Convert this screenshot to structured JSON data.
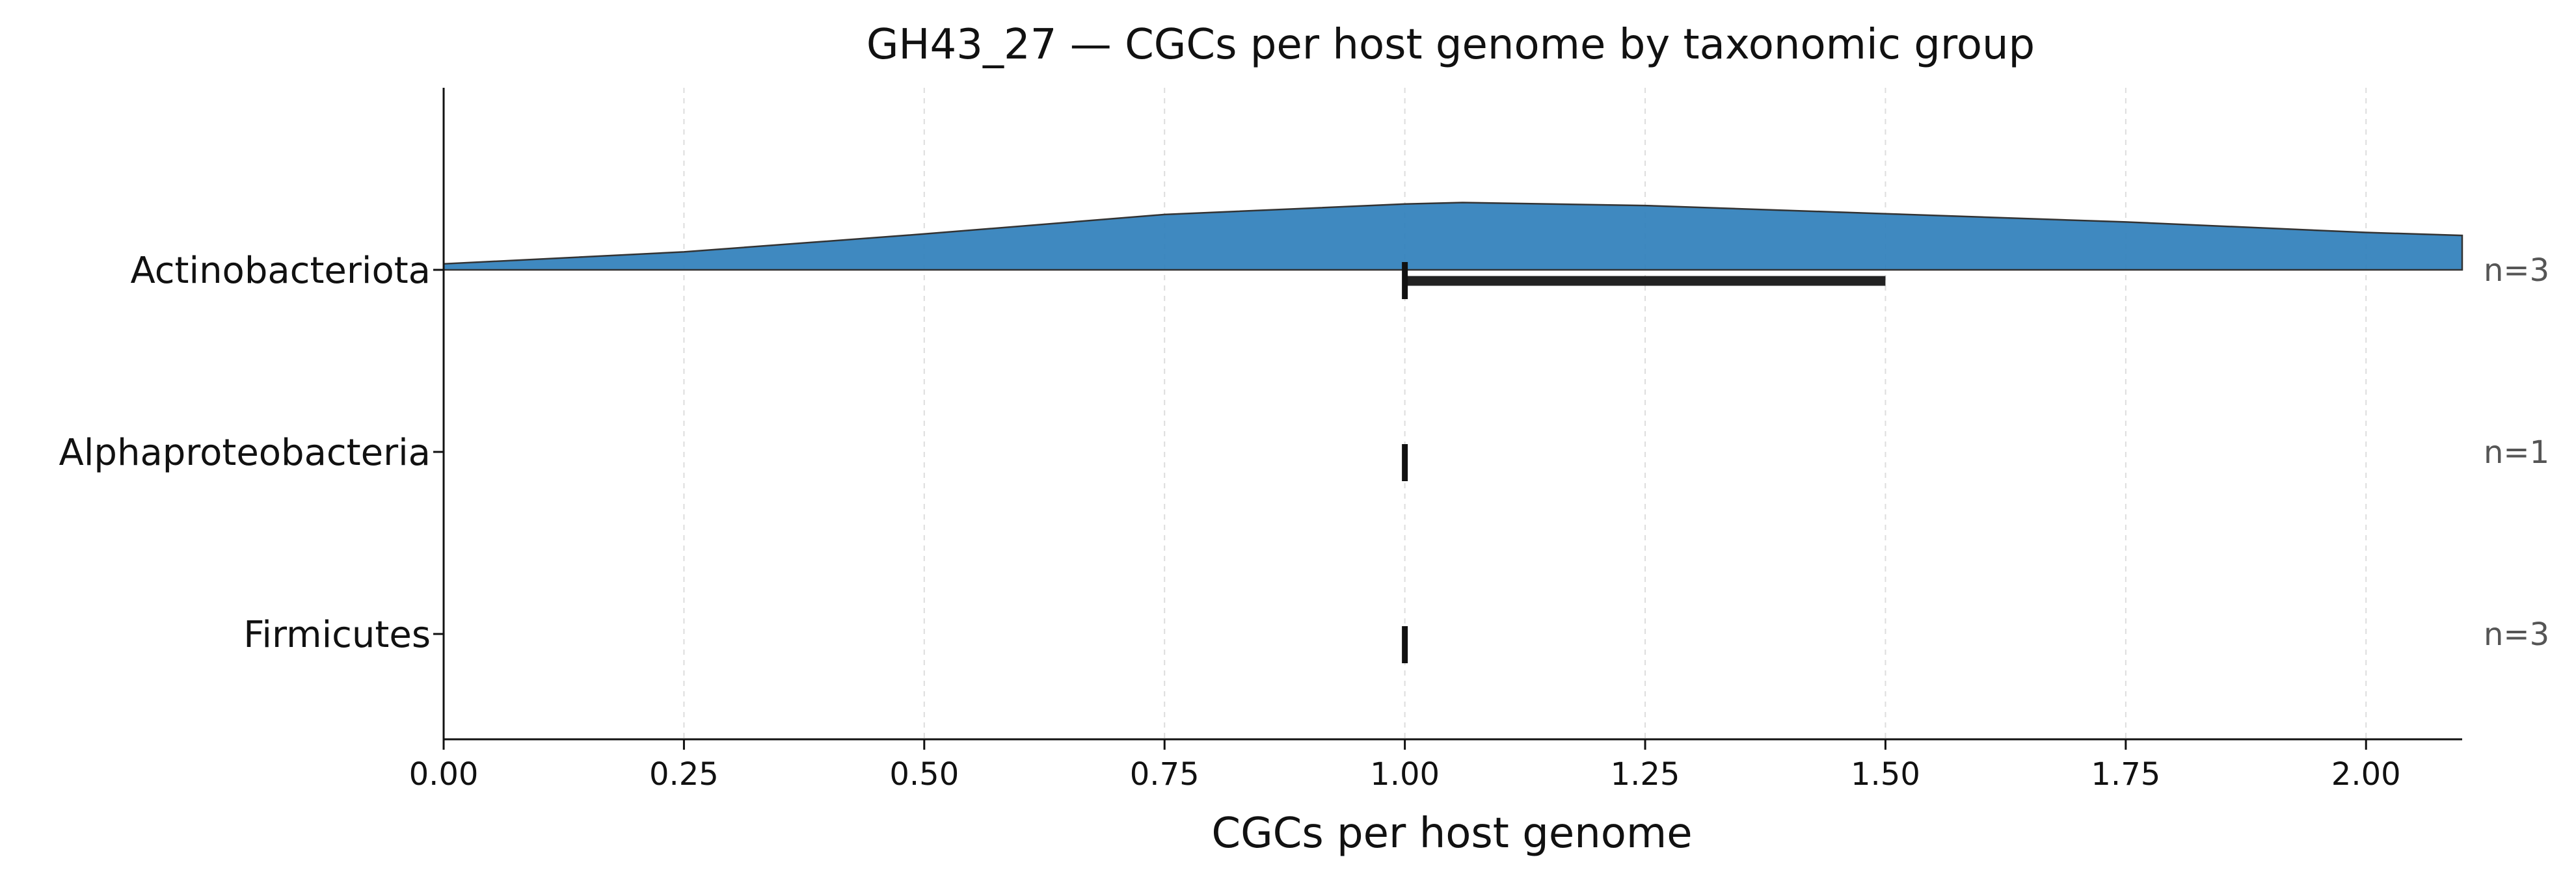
{
  "chart_data": {
    "type": "violin",
    "orientation": "horizontal",
    "title": "GH43_27 — CGCs per host genome by taxonomic group",
    "xlabel": "CGCs per host genome",
    "ylabel": "",
    "xlim": [
      0,
      2.1
    ],
    "x_ticks": [
      0.0,
      0.25,
      0.5,
      0.75,
      1.0,
      1.25,
      1.5,
      1.75,
      2.0
    ],
    "x_tick_labels": [
      "0.00",
      "0.25",
      "0.50",
      "0.75",
      "1.00",
      "1.25",
      "1.50",
      "1.75",
      "2.00"
    ],
    "grid": {
      "x": true,
      "y": false,
      "style": "dashed"
    },
    "groups": [
      {
        "name": "Actinobacteriota",
        "n_label": "n=3",
        "median": 1.0,
        "iqr": [
          1.0,
          1.5
        ],
        "density": {
          "x": [
            0.0,
            0.25,
            0.5,
            0.75,
            1.0,
            1.06,
            1.25,
            1.5,
            1.75,
            2.0,
            2.1
          ],
          "y": [
            0.08,
            0.24,
            0.48,
            0.74,
            0.88,
            0.9,
            0.86,
            0.75,
            0.64,
            0.5,
            0.46
          ]
        },
        "color": "#2f7fbb"
      },
      {
        "name": "Alphaproteobacteria",
        "n_label": "n=1",
        "median": 1.0,
        "iqr": [
          1.0,
          1.0
        ],
        "density": null,
        "color": "#2f7fbb"
      },
      {
        "name": "Firmicutes",
        "n_label": "n=3",
        "median": 1.0,
        "iqr": [
          1.0,
          1.0
        ],
        "density": null,
        "color": "#2f7fbb"
      }
    ]
  }
}
